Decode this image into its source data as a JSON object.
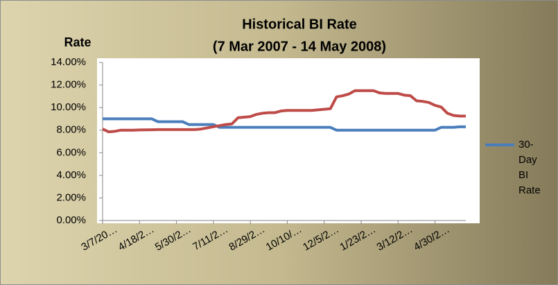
{
  "chart_data": {
    "type": "line",
    "title": "Historical BI Rate",
    "subtitle": "(7 Mar 2007 - 14 May 2008)",
    "y_label": "Rate",
    "categories": [
      "3/7/20…",
      null,
      null,
      null,
      null,
      null,
      "4/18/2…",
      null,
      null,
      null,
      null,
      null,
      "5/30/2…",
      null,
      null,
      null,
      null,
      null,
      "7/11/2…",
      null,
      null,
      null,
      null,
      null,
      "8/29/2…",
      null,
      null,
      null,
      null,
      null,
      "10/10/…",
      null,
      null,
      null,
      null,
      null,
      "12/5/2…",
      null,
      null,
      null,
      null,
      null,
      "1/23/2…",
      null,
      null,
      null,
      null,
      null,
      "3/12/2…",
      null,
      null,
      null,
      null,
      null,
      "4/30/2…",
      null,
      null,
      null,
      null,
      null
    ],
    "series": [
      {
        "name": "30-Day BI Rate",
        "color": "#4a7ebb",
        "values": [
          9,
          9,
          9,
          9,
          9,
          9,
          9,
          9,
          9,
          8.75,
          8.75,
          8.75,
          8.75,
          8.75,
          8.5,
          8.5,
          8.5,
          8.5,
          8.5,
          8.25,
          8.25,
          8.25,
          8.25,
          8.25,
          8.25,
          8.25,
          8.25,
          8.25,
          8.25,
          8.25,
          8.25,
          8.25,
          8.25,
          8.25,
          8.25,
          8.25,
          8.25,
          8.25,
          8,
          8,
          8,
          8,
          8,
          8,
          8,
          8,
          8,
          8,
          8,
          8,
          8,
          8,
          8,
          8,
          8,
          8.25,
          8.25,
          8.25,
          8.3,
          8.3
        ]
      },
      {
        "color": "#be4b48",
        "values": [
          8.1,
          7.85,
          7.9,
          8,
          8,
          8,
          8.02,
          8.03,
          8.04,
          8.05,
          8.05,
          8.05,
          8.05,
          8.05,
          8.05,
          8.05,
          8.1,
          8.2,
          8.3,
          8.4,
          8.5,
          8.55,
          9.1,
          9.15,
          9.2,
          9.4,
          9.5,
          9.55,
          9.55,
          9.7,
          9.75,
          9.75,
          9.75,
          9.75,
          9.75,
          9.8,
          9.85,
          9.9,
          10.95,
          11.05,
          11.2,
          11.5,
          11.5,
          11.5,
          11.5,
          11.3,
          11.25,
          11.25,
          11.25,
          11.1,
          11.05,
          10.6,
          10.55,
          10.45,
          10.2,
          10.05,
          9.5,
          9.3,
          9.25,
          9.25
        ]
      }
    ],
    "ylim": [
      0,
      14
    ],
    "yticks": [
      {
        "value": 0,
        "label": "0.00%"
      },
      {
        "value": 2,
        "label": "2.00%"
      },
      {
        "value": 4,
        "label": "4.00%"
      },
      {
        "value": 6,
        "label": "6.00%"
      },
      {
        "value": 8,
        "label": "8.00%"
      },
      {
        "value": 10,
        "label": "10.00%"
      },
      {
        "value": 12,
        "label": "12.00%"
      },
      {
        "value": 14,
        "label": "14.00%"
      }
    ],
    "legend": "right"
  }
}
